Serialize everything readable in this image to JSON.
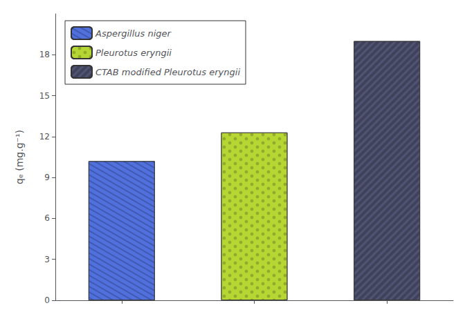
{
  "chart_data": {
    "type": "bar",
    "categories": [
      null,
      null,
      null
    ],
    "series": [
      {
        "name": "Aspergillus niger",
        "values": [
          10.2,
          null,
          null
        ]
      },
      {
        "name": "Pleurotus eryngii",
        "values": [
          null,
          12.3,
          null
        ]
      },
      {
        "name": "CTAB modified Pleurotus eryngii",
        "values": [
          null,
          null,
          19.0
        ]
      }
    ],
    "y_label": "qₑ (mg.g⁻¹)",
    "ylim": [
      0,
      21
    ],
    "yticks": [
      0,
      3,
      6,
      9,
      12,
      15,
      18
    ],
    "legend": "upper left",
    "grid": false,
    "tick_labels": "y"
  }
}
